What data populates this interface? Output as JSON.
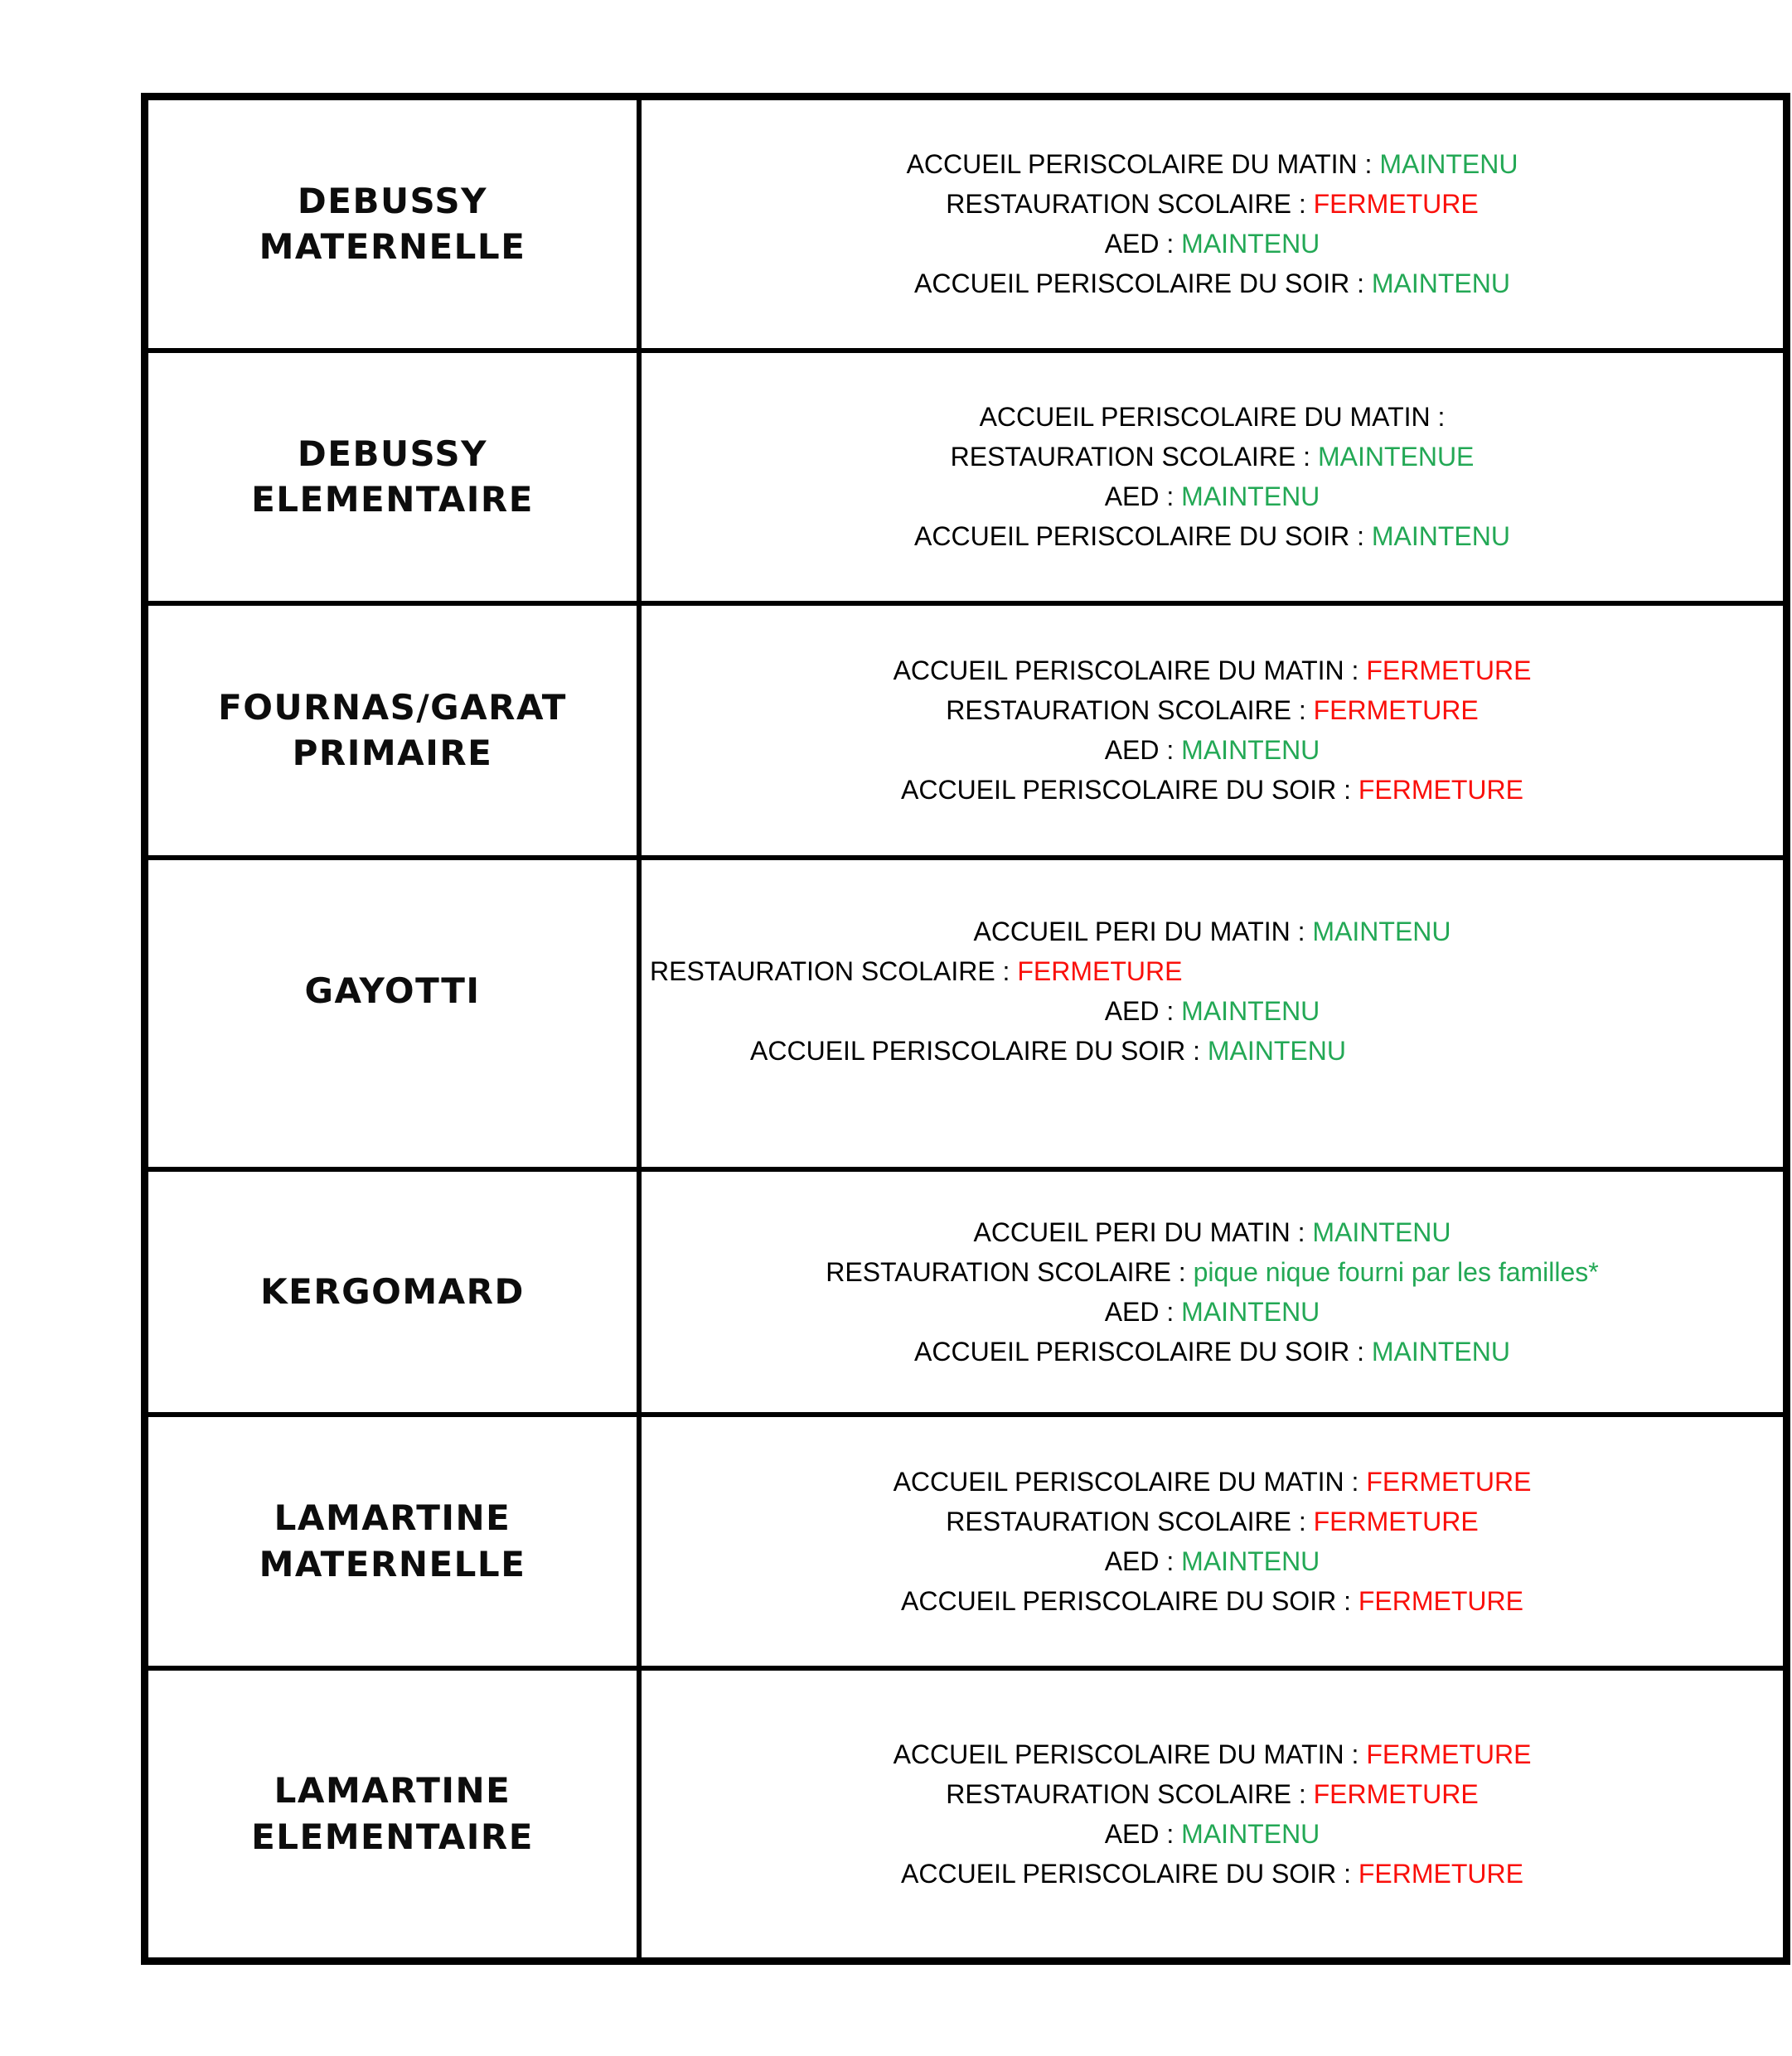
{
  "status_colors": {
    "green": "#23A855",
    "red": "#FA0F0A",
    "black": "#000000"
  },
  "table": {
    "rows": [
      {
        "school": "DEBUSSY\nMATERNELLE",
        "lines": [
          {
            "label": "ACCUEIL PERISCOLAIRE DU MATIN : ",
            "value": "MAINTENU",
            "color": "green"
          },
          {
            "label": "RESTAURATION SCOLAIRE : ",
            "value": "FERMETURE",
            "color": "red"
          },
          {
            "label": "AED : ",
            "value": "MAINTENU",
            "color": "green"
          },
          {
            "label": "ACCUEIL PERISCOLAIRE DU SOIR : ",
            "value": "MAINTENU",
            "color": "green"
          }
        ]
      },
      {
        "school": "DEBUSSY\nELEMENTAIRE",
        "lines": [
          {
            "label": "ACCUEIL PERISCOLAIRE DU MATIN :",
            "value": "",
            "color": "black"
          },
          {
            "label": "RESTAURATION SCOLAIRE : ",
            "value": "MAINTENUE",
            "color": "green"
          },
          {
            "label": "AED : ",
            "value": "MAINTENU",
            "color": "green"
          },
          {
            "label": "ACCUEIL PERISCOLAIRE DU SOIR : ",
            "value": "MAINTENU",
            "color": "green"
          }
        ]
      },
      {
        "school": "FOURNAS/GARAT\nPRIMAIRE",
        "lines": [
          {
            "label": "ACCUEIL PERISCOLAIRE DU MATIN : ",
            "value": "FERMETURE",
            "color": "red"
          },
          {
            "label": "RESTAURATION SCOLAIRE : ",
            "value": "FERMETURE",
            "color": "red"
          },
          {
            "label": "AED : ",
            "value": "MAINTENU",
            "color": "green"
          },
          {
            "label": "ACCUEIL PERISCOLAIRE DU SOIR : ",
            "value": "FERMETURE",
            "color": "red"
          }
        ]
      },
      {
        "school": "GAYOTTI",
        "lines": [
          {
            "label": "ACCUEIL PERI DU MATIN : ",
            "value": "MAINTENU",
            "color": "green"
          },
          {
            "label": "RESTAURATION SCOLAIRE : ",
            "value": "FERMETURE",
            "color": "red",
            "align": "left"
          },
          {
            "label": "AED : ",
            "value": "MAINTENU",
            "color": "green"
          },
          {
            "label": "ACCUEIL PERISCOLAIRE DU SOIR : ",
            "value": "MAINTENU",
            "color": "green",
            "align": "shift-left"
          }
        ]
      },
      {
        "school": "KERGOMARD",
        "lines": [
          {
            "label": "ACCUEIL PERI DU MATIN : ",
            "value": "MAINTENU",
            "color": "green"
          },
          {
            "label": "RESTAURATION SCOLAIRE : ",
            "value": "pique nique fourni par les familles*",
            "color": "green"
          },
          {
            "label": "AED : ",
            "value": "MAINTENU",
            "color": "green"
          },
          {
            "label": "ACCUEIL PERISCOLAIRE DU SOIR : ",
            "value": "MAINTENU",
            "color": "green"
          }
        ]
      },
      {
        "school": "LAMARTINE\nMATERNELLE",
        "lines": [
          {
            "label": "ACCUEIL PERISCOLAIRE DU MATIN : ",
            "value": "FERMETURE",
            "color": "red"
          },
          {
            "label": "RESTAURATION SCOLAIRE : ",
            "value": "FERMETURE",
            "color": "red"
          },
          {
            "label": "AED : ",
            "value": "MAINTENU",
            "color": "green"
          },
          {
            "label": "ACCUEIL PERISCOLAIRE DU SOIR : ",
            "value": "FERMETURE",
            "color": "red"
          }
        ]
      },
      {
        "school": "LAMARTINE\nELEMENTAIRE",
        "lines": [
          {
            "label": "ACCUEIL PERISCOLAIRE DU MATIN : ",
            "value": "FERMETURE",
            "color": "red"
          },
          {
            "label": "RESTAURATION SCOLAIRE : ",
            "value": "FERMETURE",
            "color": "red"
          },
          {
            "label": "AED : ",
            "value": "MAINTENU",
            "color": "green"
          },
          {
            "label": "ACCUEIL PERISCOLAIRE DU SOIR : ",
            "value": "FERMETURE",
            "color": "red"
          }
        ]
      }
    ]
  }
}
